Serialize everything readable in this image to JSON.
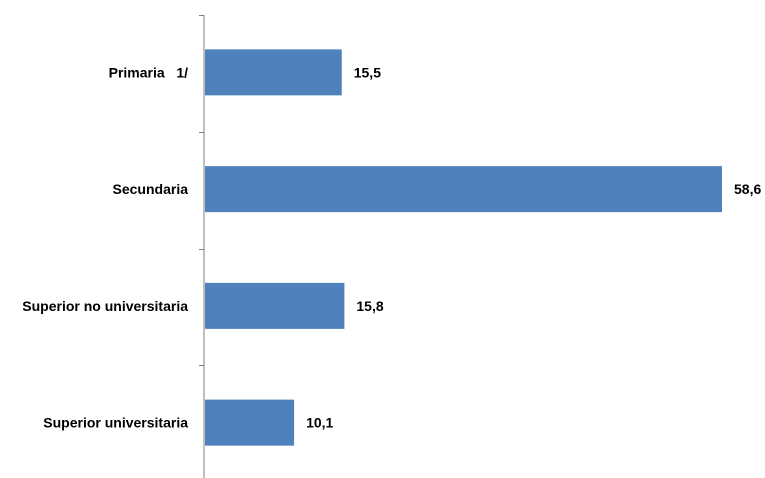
{
  "chart_data": {
    "type": "bar",
    "orientation": "horizontal",
    "categories": [
      "Primaria   1/",
      "Secundaria",
      "Superior no universitaria",
      "Superior universitaria"
    ],
    "values": [
      15.5,
      58.6,
      15.8,
      10.1
    ],
    "value_labels": [
      "15,5",
      "58,6",
      "15,8",
      "10,1"
    ],
    "xlim": [
      0,
      60
    ],
    "grid": false,
    "legend": "none"
  },
  "colors": {
    "bar": "#4f81bd",
    "axis": "#7f7f7f",
    "text": "#000000"
  }
}
